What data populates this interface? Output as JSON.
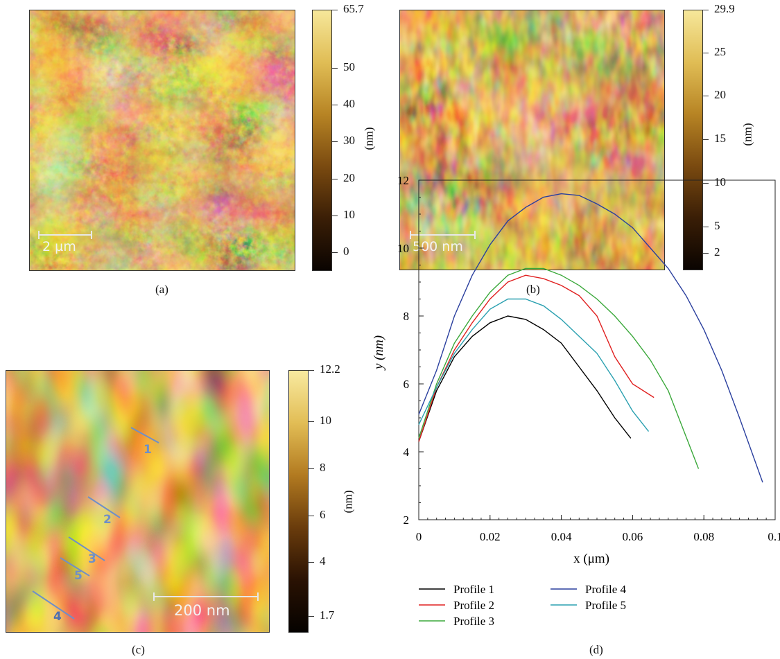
{
  "panels": {
    "a": {
      "caption": "(a)",
      "scalebar": "2 µm",
      "colorbar": {
        "unit": "(nm)",
        "max_label": "65.7",
        "min": -5,
        "max": 65.7,
        "ticks": [
          "0",
          "10",
          "20",
          "30",
          "40",
          "50",
          "65.7"
        ],
        "tick_values": [
          0,
          10,
          20,
          30,
          40,
          50,
          65.7
        ]
      }
    },
    "b": {
      "caption": "(b)",
      "scalebar": "500 nm",
      "colorbar": {
        "unit": "(nm)",
        "min": 0,
        "max": 29.9,
        "ticks": [
          "2",
          "5",
          "10",
          "15",
          "20",
          "25",
          "29.9"
        ],
        "tick_values": [
          2,
          5,
          10,
          15,
          20,
          25,
          29.9
        ]
      }
    },
    "c": {
      "caption": "(c)",
      "scalebar": "200 nm",
      "profile_markers": [
        "1",
        "2",
        "3",
        "5",
        "4"
      ],
      "colorbar": {
        "unit": "(nm)",
        "min": 1.0,
        "max": 12.2,
        "ticks": [
          "1.7",
          "4",
          "6",
          "8",
          "10",
          "12.2"
        ],
        "tick_values": [
          1.7,
          4,
          6,
          8,
          10,
          12.2
        ]
      }
    },
    "d": {
      "caption": "(d)"
    }
  },
  "colors": {
    "afm_dark": "#1a0d02",
    "afm_mid": "#8a5a14",
    "afm_light": "#f4e48e"
  },
  "chart_data": {
    "type": "line",
    "xlabel": "x (μm)",
    "ylabel": "y (nm)",
    "xlim": [
      0,
      0.1
    ],
    "ylim": [
      2,
      12
    ],
    "xticks": [
      "0",
      "0.02",
      "0.04",
      "0.06",
      "0.08",
      "0.1"
    ],
    "xtick_values": [
      0,
      0.02,
      0.04,
      0.06,
      0.08,
      0.1
    ],
    "yticks": [
      "2",
      "4",
      "6",
      "8",
      "10",
      "12"
    ],
    "ytick_values": [
      2,
      4,
      6,
      8,
      10,
      12
    ],
    "legend_position": "below",
    "series": [
      {
        "name": "Profile 1",
        "color": "#000000",
        "x": [
          0,
          0.005,
          0.01,
          0.015,
          0.02,
          0.025,
          0.03,
          0.035,
          0.04,
          0.045,
          0.05,
          0.055,
          0.0595
        ],
        "y": [
          4.3,
          5.8,
          6.8,
          7.4,
          7.8,
          8.0,
          7.9,
          7.6,
          7.2,
          6.5,
          5.8,
          5.0,
          4.4
        ]
      },
      {
        "name": "Profile 2",
        "color": "#e02020",
        "x": [
          0,
          0.005,
          0.01,
          0.015,
          0.02,
          0.025,
          0.03,
          0.035,
          0.04,
          0.045,
          0.05,
          0.055,
          0.06,
          0.066
        ],
        "y": [
          4.3,
          5.9,
          7.0,
          7.8,
          8.5,
          9.0,
          9.2,
          9.1,
          8.9,
          8.6,
          8.0,
          6.8,
          6.0,
          5.6
        ]
      },
      {
        "name": "Profile 3",
        "color": "#3aa83a",
        "x": [
          0,
          0.005,
          0.01,
          0.015,
          0.02,
          0.025,
          0.03,
          0.035,
          0.04,
          0.045,
          0.05,
          0.055,
          0.06,
          0.065,
          0.07,
          0.0785
        ],
        "y": [
          4.4,
          6.0,
          7.2,
          8.0,
          8.7,
          9.2,
          9.4,
          9.4,
          9.2,
          8.9,
          8.5,
          8.0,
          7.4,
          6.7,
          5.8,
          3.5
        ]
      },
      {
        "name": "Profile 4",
        "color": "#2a3f9e",
        "x": [
          0,
          0.005,
          0.01,
          0.015,
          0.02,
          0.025,
          0.03,
          0.035,
          0.04,
          0.045,
          0.05,
          0.055,
          0.06,
          0.065,
          0.07,
          0.075,
          0.08,
          0.085,
          0.09,
          0.0965
        ],
        "y": [
          5.1,
          6.4,
          8.0,
          9.2,
          10.1,
          10.8,
          11.2,
          11.5,
          11.6,
          11.55,
          11.3,
          11.0,
          10.6,
          10.0,
          9.4,
          8.6,
          7.6,
          6.4,
          5.0,
          3.1
        ]
      },
      {
        "name": "Profile 5",
        "color": "#2aa0b0",
        "x": [
          0,
          0.005,
          0.01,
          0.015,
          0.02,
          0.025,
          0.03,
          0.035,
          0.04,
          0.045,
          0.05,
          0.055,
          0.06,
          0.0645
        ],
        "y": [
          4.8,
          5.9,
          6.9,
          7.6,
          8.2,
          8.5,
          8.5,
          8.3,
          7.9,
          7.4,
          6.9,
          6.1,
          5.2,
          4.6
        ]
      }
    ]
  }
}
